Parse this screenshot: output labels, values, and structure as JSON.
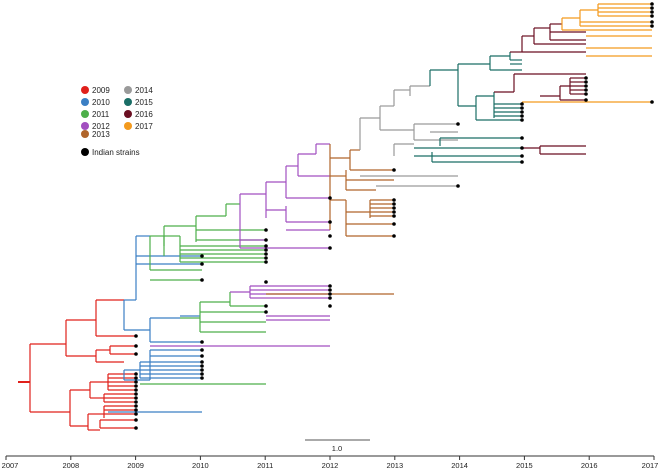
{
  "legend": {
    "items": [
      {
        "label": "2009",
        "color": "#e0201b"
      },
      {
        "label": "2010",
        "color": "#3b7fc4"
      },
      {
        "label": "2011",
        "color": "#4daf4a"
      },
      {
        "label": "2012",
        "color": "#a24fc0"
      },
      {
        "label": "2013",
        "color": "#b0652a"
      },
      {
        "label": "2014",
        "color": "#9a9a9a"
      },
      {
        "label": "2015",
        "color": "#1a6e66"
      },
      {
        "label": "2016",
        "color": "#6b0f22"
      },
      {
        "label": "2017",
        "color": "#f39a1e"
      }
    ],
    "indian_label": "Indian strains"
  },
  "axis": {
    "years": [
      "2007",
      "2008",
      "2009",
      "2010",
      "2011",
      "2012",
      "2013",
      "2014",
      "2015",
      "2016",
      "2017"
    ]
  },
  "scale_bar": {
    "label": "1.0"
  }
}
